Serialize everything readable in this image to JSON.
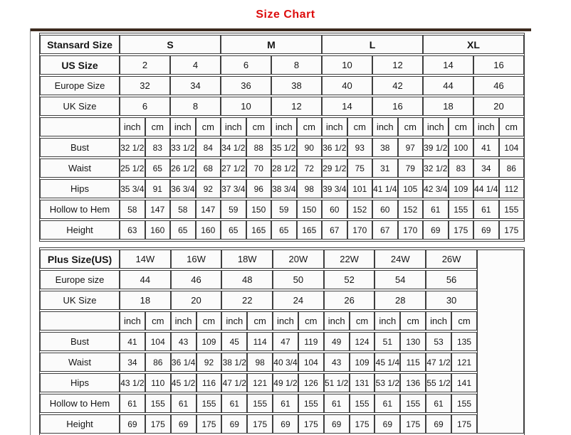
{
  "page": {
    "title": "Size Chart",
    "title_color": "#dd0c0c",
    "border_color": "#3f3f3f",
    "top_bar_color": "#3c2a1e"
  },
  "standard_table": {
    "corner_label": "Stansard Size",
    "size_groups": [
      "S",
      "M",
      "L",
      "XL"
    ],
    "header_rows": [
      {
        "label": "US Size",
        "bold": true,
        "values": [
          "2",
          "4",
          "6",
          "8",
          "10",
          "12",
          "14",
          "16"
        ]
      },
      {
        "label": "Europe Size",
        "bold": false,
        "values": [
          "32",
          "34",
          "36",
          "38",
          "40",
          "42",
          "44",
          "46"
        ]
      },
      {
        "label": "UK Size",
        "bold": false,
        "values": [
          "6",
          "8",
          "10",
          "12",
          "14",
          "16",
          "18",
          "20"
        ]
      }
    ],
    "unit_labels": [
      "inch",
      "cm"
    ],
    "measure_rows": [
      {
        "label": "Bust",
        "values": [
          "32 1/2",
          "83",
          "33 1/2",
          "84",
          "34 1/2",
          "88",
          "35 1/2",
          "90",
          "36 1/2",
          "93",
          "38",
          "97",
          "39 1/2",
          "100",
          "41",
          "104"
        ]
      },
      {
        "label": "Waist",
        "values": [
          "25 1/2",
          "65",
          "26 1/2",
          "68",
          "27 1/2",
          "70",
          "28 1/2",
          "72",
          "29 1/2",
          "75",
          "31",
          "79",
          "32 1/2",
          "83",
          "34",
          "86"
        ]
      },
      {
        "label": "Hips",
        "values": [
          "35 3/4",
          "91",
          "36 3/4",
          "92",
          "37 3/4",
          "96",
          "38 3/4",
          "98",
          "39 3/4",
          "101",
          "41 1/4",
          "105",
          "42 3/4",
          "109",
          "44 1/4",
          "112"
        ]
      },
      {
        "label": "Hollow to Hem",
        "values": [
          "58",
          "147",
          "58",
          "147",
          "59",
          "150",
          "59",
          "150",
          "60",
          "152",
          "60",
          "152",
          "61",
          "155",
          "61",
          "155"
        ]
      },
      {
        "label": "Height",
        "values": [
          "63",
          "160",
          "65",
          "160",
          "65",
          "165",
          "65",
          "165",
          "67",
          "170",
          "67",
          "170",
          "69",
          "175",
          "69",
          "175"
        ]
      }
    ]
  },
  "plus_table": {
    "corner_label": "Plus Size(US)",
    "size_groups": [
      "14W",
      "16W",
      "18W",
      "20W",
      "22W",
      "24W",
      "26W"
    ],
    "header_rows": [
      {
        "label": "Europe size",
        "bold": false,
        "values": [
          "44",
          "46",
          "48",
          "50",
          "52",
          "54",
          "56"
        ]
      },
      {
        "label": "UK Size",
        "bold": false,
        "values": [
          "18",
          "20",
          "22",
          "24",
          "26",
          "28",
          "30"
        ]
      }
    ],
    "unit_labels": [
      "inch",
      "cm"
    ],
    "has_right_empty_column": true,
    "measure_rows": [
      {
        "label": "Bust",
        "values": [
          "41",
          "104",
          "43",
          "109",
          "45",
          "114",
          "47",
          "119",
          "49",
          "124",
          "51",
          "130",
          "53",
          "135"
        ]
      },
      {
        "label": "Waist",
        "values": [
          "34",
          "86",
          "36 1/4",
          "92",
          "38 1/2",
          "98",
          "40 3/4",
          "104",
          "43",
          "109",
          "45 1/4",
          "115",
          "47 1/2",
          "121"
        ]
      },
      {
        "label": "Hips",
        "values": [
          "43 1/2",
          "110",
          "45 1/2",
          "116",
          "47 1/2",
          "121",
          "49 1/2",
          "126",
          "51 1/2",
          "131",
          "53 1/2",
          "136",
          "55 1/2",
          "141"
        ]
      },
      {
        "label": "Hollow to Hem",
        "values": [
          "61",
          "155",
          "61",
          "155",
          "61",
          "155",
          "61",
          "155",
          "61",
          "155",
          "61",
          "155",
          "61",
          "155"
        ]
      },
      {
        "label": "Height",
        "values": [
          "69",
          "175",
          "69",
          "175",
          "69",
          "175",
          "69",
          "175",
          "69",
          "175",
          "69",
          "175",
          "69",
          "175"
        ]
      }
    ]
  }
}
